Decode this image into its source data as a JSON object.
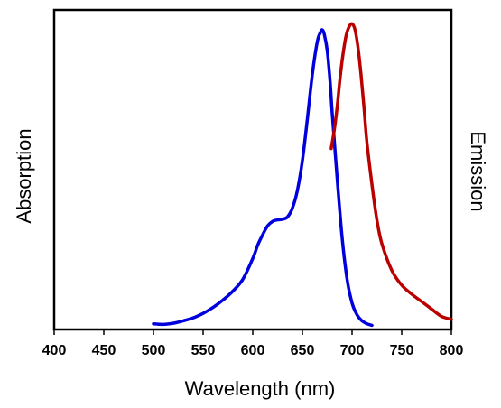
{
  "chart_data": {
    "type": "line",
    "xlabel": "Wavelength (nm)",
    "ylabel": "Absorption",
    "y2label": "Emission",
    "xlim": [
      400,
      800
    ],
    "xticks": [
      "400",
      "450",
      "500",
      "550",
      "600",
      "650",
      "700",
      "750",
      "800"
    ],
    "ylim": [
      0,
      1.05
    ],
    "grid": false,
    "series": [
      {
        "color": "#0000dd",
        "x": [
          500,
          510,
          520,
          530,
          540,
          550,
          560,
          570,
          580,
          590,
          600,
          605,
          610,
          615,
          620,
          625,
          630,
          635,
          640,
          645,
          650,
          655,
          660,
          665,
          668,
          670,
          672,
          675,
          678,
          680,
          685,
          690,
          695,
          700,
          705,
          710,
          715,
          720
        ],
        "y": [
          0.01,
          0.008,
          0.012,
          0.02,
          0.03,
          0.045,
          0.065,
          0.09,
          0.12,
          0.16,
          0.23,
          0.275,
          0.31,
          0.34,
          0.355,
          0.36,
          0.362,
          0.37,
          0.4,
          0.46,
          0.56,
          0.7,
          0.85,
          0.96,
          0.99,
          1.0,
          0.985,
          0.93,
          0.82,
          0.72,
          0.5,
          0.3,
          0.16,
          0.08,
          0.04,
          0.02,
          0.01,
          0.005
        ]
      },
      {
        "color": "#bb0000",
        "x": [
          679,
          682,
          685,
          688,
          691,
          694,
          697,
          700,
          703,
          706,
          709,
          712,
          715,
          720,
          725,
          730,
          740,
          750,
          760,
          770,
          780,
          790,
          800
        ],
        "y": [
          0.6,
          0.66,
          0.74,
          0.84,
          0.92,
          0.98,
          1.01,
          1.02,
          1.0,
          0.94,
          0.85,
          0.74,
          0.62,
          0.48,
          0.36,
          0.28,
          0.19,
          0.14,
          0.11,
          0.085,
          0.06,
          0.035,
          0.025
        ]
      }
    ]
  }
}
